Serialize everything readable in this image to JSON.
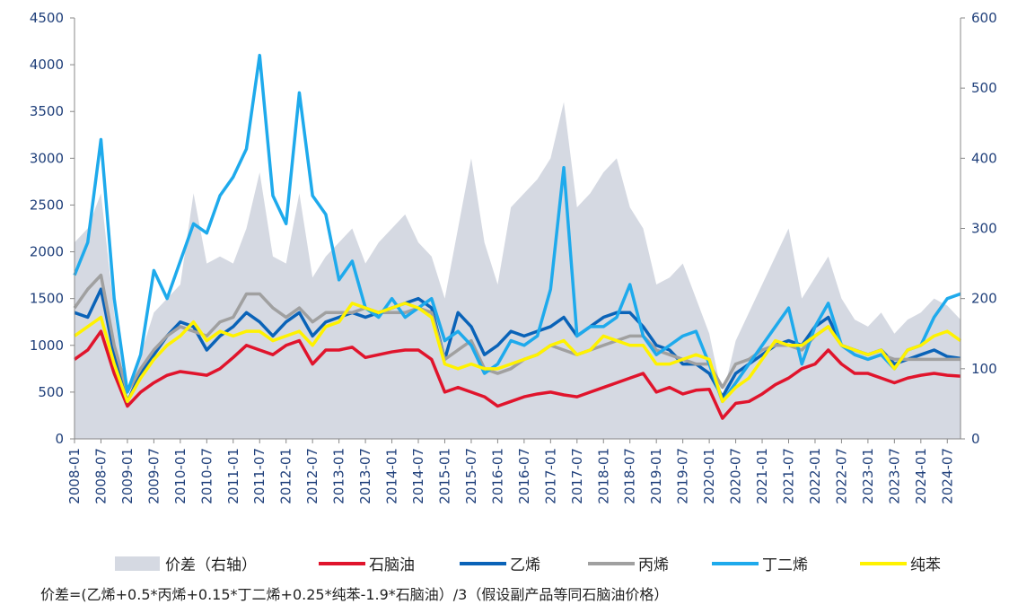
{
  "chart_data": {
    "type": "line",
    "categories": [
      "2008-01",
      null,
      "2008-07",
      null,
      "2009-01",
      null,
      "2009-07",
      null,
      "2010-01",
      null,
      "2010-07",
      null,
      "2011-01",
      null,
      "2011-07",
      null,
      "2012-01",
      null,
      "2012-07",
      null,
      "2013-01",
      null,
      "2013-07",
      null,
      "2014-01",
      null,
      "2014-07",
      null,
      "2015-01",
      null,
      "2015-07",
      null,
      "2016-01",
      null,
      "2016-07",
      null,
      "2017-01",
      null,
      "2017-07",
      null,
      "2018-01",
      null,
      "2018-07",
      null,
      "2019-01",
      null,
      "2019-07",
      null,
      "2020-01",
      null,
      "2020-07",
      null,
      "2021-01",
      null,
      "2021-07",
      null,
      "2022-01",
      null,
      "2022-07",
      null,
      "2023-01",
      null,
      "2023-07",
      null,
      "2024-01",
      null,
      "2024-07",
      null
    ],
    "series": [
      {
        "name": "价差（右轴）",
        "color": "#d5d9e2",
        "axis": "y2",
        "fill": true,
        "values": [
          280,
          300,
          350,
          180,
          50,
          120,
          180,
          200,
          220,
          350,
          250,
          260,
          250,
          300,
          380,
          260,
          250,
          350,
          230,
          260,
          280,
          300,
          250,
          280,
          300,
          320,
          280,
          260,
          200,
          300,
          400,
          280,
          220,
          330,
          350,
          370,
          400,
          480,
          330,
          350,
          380,
          400,
          330,
          300,
          220,
          230,
          250,
          200,
          150,
          60,
          140,
          180,
          220,
          260,
          300,
          200,
          230,
          260,
          200,
          170,
          160,
          180,
          150,
          170,
          180,
          200,
          190,
          170
        ]
      },
      {
        "name": "石脑油",
        "color": "#e0142c",
        "values": [
          850,
          950,
          1150,
          700,
          350,
          500,
          600,
          680,
          720,
          700,
          680,
          750,
          870,
          1000,
          950,
          900,
          1000,
          1050,
          800,
          950,
          950,
          980,
          870,
          900,
          930,
          950,
          950,
          850,
          500,
          550,
          500,
          450,
          350,
          400,
          450,
          480,
          500,
          470,
          450,
          500,
          550,
          600,
          650,
          700,
          500,
          550,
          480,
          520,
          530,
          220,
          380,
          400,
          480,
          580,
          650,
          750,
          800,
          950,
          800,
          700,
          700,
          650,
          600,
          650,
          680,
          700,
          680,
          670
        ]
      },
      {
        "name": "乙烯",
        "color": "#0a63b8",
        "values": [
          1350,
          1300,
          1600,
          900,
          400,
          700,
          900,
          1100,
          1250,
          1200,
          950,
          1100,
          1200,
          1350,
          1250,
          1100,
          1250,
          1350,
          1100,
          1250,
          1300,
          1350,
          1300,
          1350,
          1400,
          1450,
          1500,
          1400,
          850,
          1350,
          1200,
          900,
          1000,
          1150,
          1100,
          1150,
          1200,
          1300,
          1100,
          1200,
          1300,
          1350,
          1350,
          1200,
          1000,
          950,
          800,
          800,
          700,
          450,
          700,
          800,
          900,
          1000,
          1050,
          1000,
          1200,
          1300,
          1000,
          950,
          900,
          950,
          800,
          850,
          900,
          950,
          880,
          860
        ]
      },
      {
        "name": "丙烯",
        "color": "#a0a0a0",
        "values": [
          1400,
          1600,
          1750,
          1000,
          500,
          750,
          950,
          1100,
          1200,
          1150,
          1100,
          1250,
          1300,
          1550,
          1550,
          1400,
          1300,
          1400,
          1250,
          1350,
          1350,
          1350,
          1400,
          1350,
          1350,
          1350,
          1400,
          1350,
          850,
          950,
          1050,
          750,
          700,
          750,
          850,
          900,
          1000,
          950,
          900,
          950,
          1000,
          1050,
          1100,
          1100,
          950,
          900,
          850,
          800,
          800,
          550,
          800,
          850,
          950,
          1000,
          1000,
          950,
          1100,
          1200,
          1000,
          900,
          850,
          900,
          850,
          850,
          850,
          850,
          850,
          850
        ]
      },
      {
        "name": "丁二烯",
        "color": "#1eaaec",
        "values": [
          1750,
          2100,
          3200,
          1500,
          500,
          900,
          1800,
          1500,
          1900,
          2300,
          2200,
          2600,
          2800,
          3100,
          4100,
          2600,
          2300,
          3700,
          2600,
          2400,
          1700,
          1900,
          1400,
          1300,
          1500,
          1300,
          1400,
          1500,
          1050,
          1150,
          1000,
          700,
          800,
          1050,
          1000,
          1100,
          1600,
          2900,
          1100,
          1200,
          1200,
          1300,
          1650,
          1100,
          900,
          1000,
          1100,
          1150,
          800,
          400,
          600,
          800,
          1000,
          1200,
          1400,
          800,
          1200,
          1450,
          1000,
          900,
          850,
          900,
          750,
          950,
          1000,
          1300,
          1500,
          1550
        ]
      },
      {
        "name": "纯苯",
        "color": "#fff200",
        "values": [
          1100,
          1200,
          1300,
          800,
          400,
          650,
          850,
          1000,
          1100,
          1250,
          1050,
          1150,
          1100,
          1150,
          1150,
          1050,
          1100,
          1150,
          1000,
          1200,
          1250,
          1450,
          1400,
          1350,
          1400,
          1450,
          1400,
          1300,
          800,
          750,
          800,
          750,
          750,
          800,
          850,
          900,
          1000,
          1050,
          900,
          950,
          1100,
          1050,
          1000,
          1000,
          800,
          800,
          850,
          900,
          850,
          400,
          550,
          650,
          850,
          1050,
          1000,
          1000,
          1100,
          1200,
          1000,
          950,
          900,
          950,
          750,
          950,
          1000,
          1100,
          1150,
          1050
        ]
      }
    ],
    "ylim": [
      0,
      4500
    ],
    "yticks": [
      0,
      500,
      1000,
      1500,
      2000,
      2500,
      3000,
      3500,
      4000,
      4500
    ],
    "y2lim": [
      0,
      600
    ],
    "y2ticks": [
      0,
      100,
      200,
      300,
      400,
      500,
      600
    ],
    "note": "价差=(乙烯+0.5*丙烯+0.15*丁二烯+0.25*纯苯-1.9*石脑油）/3（假设副产品等同石脑油价格）"
  }
}
